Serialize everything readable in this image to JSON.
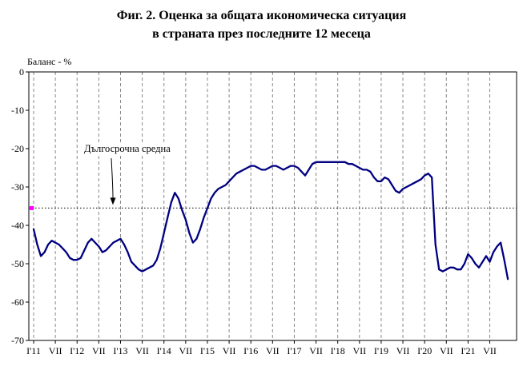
{
  "title": {
    "line1": "Фиг. 2. Оценка за общата икономическа ситуация",
    "line2": "в страната през последните 12 месеца"
  },
  "chart_data": {
    "type": "line",
    "title": "Фиг. 2. Оценка за общата икономическа ситуация в страната през последните 12 месеца",
    "ylabel": "Баланс - %",
    "xlabel": "",
    "ylim": [
      -70,
      0
    ],
    "grid": "vertical-dashed",
    "legend_position": "none",
    "y_ticks": [
      0,
      -10,
      -20,
      -30,
      -40,
      -50,
      -60,
      -70
    ],
    "months_per_tick": 6,
    "x_tick_labels": [
      "I'11",
      "VII",
      "I'12",
      "VII",
      "I'13",
      "VII",
      "I'14",
      "VII",
      "I'15",
      "VII",
      "I'16",
      "VII",
      "I'17",
      "VII",
      "I'18",
      "VII",
      "I'19",
      "VII",
      "I'20",
      "VII",
      "I'21",
      "VII"
    ],
    "series": [
      {
        "name": "Оценка за общата икономическа ситуация",
        "color": "#000080",
        "start": "I.2011",
        "values": [
          -41,
          -45,
          -48,
          -47,
          -45,
          -44,
          -44.5,
          -45,
          -46,
          -47,
          -48.5,
          -49,
          -49,
          -48.5,
          -46.5,
          -44.5,
          -43.5,
          -44.5,
          -45.5,
          -47,
          -46.5,
          -45.5,
          -44.5,
          -44,
          -43.5,
          -45,
          -47,
          -49.5,
          -50.5,
          -51.5,
          -52,
          -51.5,
          -51,
          -50.5,
          -49,
          -46,
          -42,
          -38,
          -34,
          -31.5,
          -33,
          -36,
          -38.5,
          -42,
          -44.5,
          -43.5,
          -41,
          -38,
          -35.5,
          -33,
          -31.5,
          -30.5,
          -30,
          -29.5,
          -28.5,
          -27.5,
          -26.5,
          -26,
          -25.5,
          -25,
          -24.5,
          -24.5,
          -25,
          -25.5,
          -25.5,
          -25,
          -24.5,
          -24.5,
          -25,
          -25.5,
          -25,
          -24.5,
          -24.5,
          -25,
          -26,
          -27,
          -25.5,
          -24,
          -23.5,
          -23.5,
          -23.5,
          -23.5,
          -23.5,
          -23.5,
          -23.5,
          -23.5,
          -23.5,
          -24,
          -24,
          -24.5,
          -25,
          -25.5,
          -25.5,
          -26,
          -27.5,
          -28.5,
          -28.5,
          -27.5,
          -28,
          -29.5,
          -31,
          -31.5,
          -30.5,
          -30,
          -29.5,
          -29,
          -28.5,
          -28,
          -27,
          -26.5,
          -27.5,
          -45,
          -51.5,
          -52,
          -51.5,
          -51,
          -51,
          -51.5,
          -51.5,
          -50,
          -47.5,
          -48.5,
          -50,
          -51,
          -49.5,
          -48,
          -49.5,
          -47,
          -45.5,
          -44.5,
          -49,
          -54
        ]
      }
    ],
    "long_term_average": {
      "label": "Дългосрочна средна",
      "value": -35.5,
      "line_style": "dotted",
      "marker_color": "#FF00FF"
    }
  },
  "colors": {
    "line": "#000080",
    "average_marker": "#FF00FF",
    "grid": "#888888",
    "frame": "#000000",
    "background": "#ffffff"
  }
}
